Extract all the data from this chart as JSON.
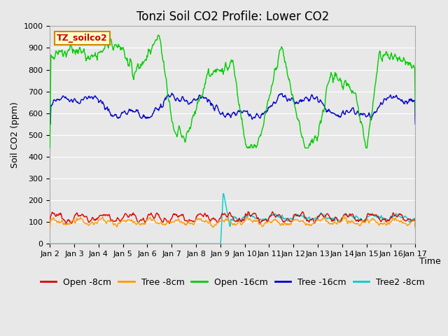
{
  "title": "Tonzi Soil CO2 Profile: Lower CO2",
  "ylabel": "Soil CO2 (ppm)",
  "xlabel": "Time",
  "annotation_label": "TZ_soilco2",
  "ylim": [
    0,
    1000
  ],
  "xlim_days": [
    2,
    17
  ],
  "xtick_labels": [
    "Jan 2",
    "Jan 3",
    "Jan 4",
    "Jan 5",
    "Jan 6",
    "Jan 7",
    "Jan 8",
    "Jan 9",
    "Jan 10",
    "Jan 11",
    "Jan 12",
    "Jan 13",
    "Jan 14",
    "Jan 15",
    "Jan 16",
    "Jan 17"
  ],
  "series": {
    "open_8cm": {
      "color": "#dd0000",
      "label": "Open -8cm",
      "lw": 1.0
    },
    "tree_8cm": {
      "color": "#ff9900",
      "label": "Tree -8cm",
      "lw": 1.0
    },
    "open_16cm": {
      "color": "#00cc00",
      "label": "Open -16cm",
      "lw": 1.0
    },
    "tree_16cm": {
      "color": "#0000cc",
      "label": "Tree -16cm",
      "lw": 1.0
    },
    "tree2_8cm": {
      "color": "#00cccc",
      "label": "Tree2 -8cm",
      "lw": 1.0
    }
  },
  "bg_color": "#e8e8e8",
  "plot_bg_color": "#e8e8e8",
  "grid_color": "#ffffff",
  "title_fontsize": 12,
  "axis_label_fontsize": 9,
  "tick_fontsize": 8,
  "legend_fontsize": 9
}
